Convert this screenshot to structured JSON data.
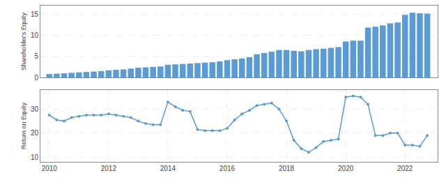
{
  "chart_data": [
    {
      "type": "bar",
      "x": [
        2010.0,
        2010.25,
        2010.5,
        2010.75,
        2011.0,
        2011.25,
        2011.5,
        2011.75,
        2012.0,
        2012.25,
        2012.5,
        2012.75,
        2013.0,
        2013.25,
        2013.5,
        2013.75,
        2014.0,
        2014.25,
        2014.5,
        2014.75,
        2015.0,
        2015.25,
        2015.5,
        2015.75,
        2016.0,
        2016.25,
        2016.5,
        2016.75,
        2017.0,
        2017.25,
        2017.5,
        2017.75,
        2018.0,
        2018.25,
        2018.5,
        2018.75,
        2019.0,
        2019.25,
        2019.5,
        2019.75,
        2020.0,
        2020.25,
        2020.5,
        2020.75,
        2021.0,
        2021.25,
        2021.5,
        2021.75,
        2022.0,
        2022.25,
        2022.5,
        2022.75
      ],
      "values": [
        0.8,
        0.9,
        1.0,
        1.1,
        1.2,
        1.3,
        1.4,
        1.5,
        1.7,
        1.8,
        1.9,
        2.1,
        2.3,
        2.4,
        2.5,
        2.6,
        3.0,
        3.1,
        3.2,
        3.3,
        3.4,
        3.5,
        3.6,
        3.8,
        4.1,
        4.3,
        4.5,
        4.8,
        5.5,
        5.8,
        6.1,
        6.5,
        6.5,
        6.3,
        6.2,
        6.5,
        6.7,
        6.8,
        7.0,
        7.2,
        8.5,
        8.7,
        8.7,
        11.8,
        12.0,
        12.3,
        12.8,
        13.0,
        14.8,
        15.3,
        15.2,
        15.1
      ],
      "color": "#5B9BD5",
      "y_label": "Shareholder's Equity",
      "xlim": [
        2009.7,
        2023.1
      ],
      "ylim": [
        0,
        17
      ],
      "yticks": [
        0,
        5,
        10,
        15
      ],
      "tick_labels": "y",
      "grid": true
    },
    {
      "type": "line",
      "x": [
        2010.0,
        2010.25,
        2010.5,
        2010.75,
        2011.0,
        2011.25,
        2011.5,
        2011.75,
        2012.0,
        2012.25,
        2012.5,
        2012.75,
        2013.0,
        2013.25,
        2013.5,
        2013.75,
        2014.0,
        2014.25,
        2014.5,
        2014.75,
        2015.0,
        2015.25,
        2015.5,
        2015.75,
        2016.0,
        2016.25,
        2016.5,
        2016.75,
        2017.0,
        2017.25,
        2017.5,
        2017.75,
        2018.0,
        2018.25,
        2018.5,
        2018.75,
        2019.0,
        2019.25,
        2019.5,
        2019.75,
        2020.0,
        2020.25,
        2020.5,
        2020.75,
        2021.0,
        2021.25,
        2021.5,
        2021.75,
        2022.0,
        2022.25,
        2022.5,
        2022.75
      ],
      "values": [
        27.5,
        25.5,
        25.0,
        26.5,
        27.0,
        27.5,
        27.5,
        27.5,
        28.0,
        27.5,
        27.0,
        26.5,
        25.0,
        24.0,
        23.5,
        23.5,
        33.0,
        31.0,
        29.5,
        29.0,
        21.5,
        21.0,
        21.0,
        21.0,
        22.0,
        25.5,
        28.0,
        29.5,
        31.5,
        32.0,
        32.5,
        30.0,
        25.0,
        17.0,
        13.5,
        12.0,
        14.0,
        16.5,
        17.0,
        17.5,
        35.0,
        35.5,
        35.0,
        32.0,
        19.0,
        19.0,
        20.0,
        20.0,
        15.0,
        15.0,
        14.5,
        19.0
      ],
      "color": "#5B9BD5",
      "marker": "circle",
      "y_label": "Return on Equity",
      "xlim": [
        2009.7,
        2023.1
      ],
      "xticks": [
        2010,
        2012,
        2014,
        2016,
        2018,
        2020,
        2022
      ],
      "ylim": [
        8,
        38
      ],
      "yticks": [
        10,
        20,
        30
      ],
      "grid": true
    }
  ]
}
